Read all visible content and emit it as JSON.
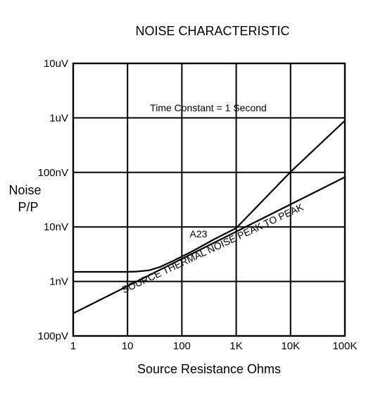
{
  "chart_data": {
    "type": "line",
    "title": "NOISE CHARACTERISTIC",
    "xlabel": "Source Resistance  Ohms",
    "ylabel_lines": [
      "Noise",
      "P/P"
    ],
    "x_scale": "log",
    "y_scale": "log",
    "xlim": [
      1,
      100000
    ],
    "ylim": [
      1e-10,
      1e-05
    ],
    "grid": true,
    "x_ticks": [
      {
        "value": 1,
        "label": "1"
      },
      {
        "value": 10,
        "label": "10"
      },
      {
        "value": 100,
        "label": "100"
      },
      {
        "value": 1000,
        "label": "1K"
      },
      {
        "value": 10000,
        "label": "10K"
      },
      {
        "value": 100000,
        "label": "100K"
      }
    ],
    "y_ticks": [
      {
        "value": 1e-10,
        "label": "100pV"
      },
      {
        "value": 1e-09,
        "label": "1nV"
      },
      {
        "value": 1e-08,
        "label": "10nV"
      },
      {
        "value": 1e-07,
        "label": "100nV"
      },
      {
        "value": 1e-06,
        "label": "1uV"
      },
      {
        "value": 1e-05,
        "label": "10uV"
      }
    ],
    "annotation": "Time Constant = 1 Second",
    "series": [
      {
        "name": "A23",
        "x": [
          1,
          10,
          15,
          25,
          40,
          70,
          150,
          400,
          1000,
          1200,
          10000,
          100000
        ],
        "y": [
          1.5e-09,
          1.5e-09,
          1.52e-09,
          1.6e-09,
          1.85e-09,
          2.4e-09,
          3.5e-09,
          6e-09,
          9.5e-09,
          1.15e-08,
          1.02e-07,
          8.9e-07
        ]
      },
      {
        "name": "SOURCE THERMAL NOISE   PEAK TO PEAK",
        "x": [
          1,
          100000
        ],
        "y": [
          2.6e-10,
          8.2e-08
        ]
      }
    ]
  }
}
